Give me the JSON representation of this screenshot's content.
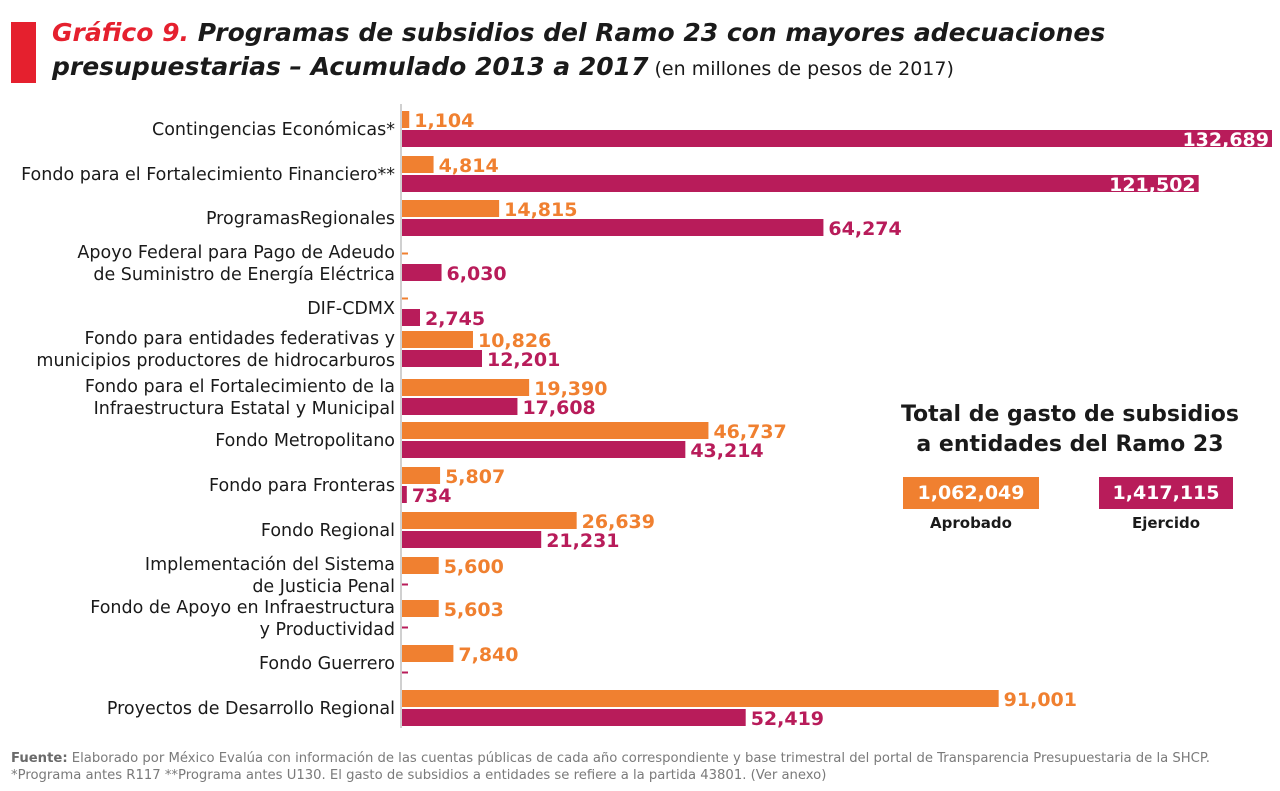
{
  "header": {
    "title_number": "Gráfico 9.",
    "title_line1": " Programas de subsidios del Ramo 23 con mayores adecuaciones",
    "title_line2": "presupuestarias – Acumulado 2013 a 2017",
    "title_units": " (en millones de pesos de 2017)"
  },
  "colors": {
    "aprobado": "#f08030",
    "ejercido": "#b81c5a",
    "accent": "#e5202e"
  },
  "chart_data": {
    "type": "bar",
    "orientation": "horizontal",
    "title": "Gráfico 9. Programas de subsidios del Ramo 23 con mayores adecuaciones presupuestarias – Acumulado 2013 a 2017 (en millones de pesos de 2017)",
    "xlabel": "",
    "ylabel": "",
    "grid": false,
    "legend": "none",
    "xlim": [
      0,
      132689
    ],
    "categories": [
      [
        "Contingencias Económicas*"
      ],
      [
        "Fondo para el Fortalecimiento Financiero**"
      ],
      [
        "ProgramasRegionales"
      ],
      [
        "Apoyo Federal para Pago de Adeudo",
        "de Suministro de Energía Eléctrica"
      ],
      [
        "DIF-CDMX"
      ],
      [
        "Fondo para entidades federativas y",
        "municipios productores de hidrocarburos"
      ],
      [
        "Fondo para el Fortalecimiento de la",
        "Infraestructura Estatal y Municipal"
      ],
      [
        "Fondo Metropolitano"
      ],
      [
        "Fondo para Fronteras"
      ],
      [
        "Fondo Regional"
      ],
      [
        "Implementación del Sistema",
        "de Justicia Penal"
      ],
      [
        "Fondo de Apoyo en Infraestructura",
        "y Productividad"
      ],
      [
        "Fondo Guerrero"
      ],
      [
        "Proyectos de Desarrollo Regional"
      ]
    ],
    "series": [
      {
        "name": "Aprobado",
        "values": [
          1104,
          4814,
          14815,
          0,
          0,
          10826,
          19390,
          46737,
          5807,
          26639,
          5600,
          5603,
          7840,
          91001
        ],
        "labels": [
          "1,104",
          "4,814",
          "14,815",
          "-",
          "-",
          "10,826",
          "19,390",
          "46,737",
          "5,807",
          "26,639",
          "5,600",
          "5,603",
          "7,840",
          "91,001"
        ]
      },
      {
        "name": "Ejercido",
        "values": [
          132689,
          121502,
          64274,
          6030,
          2745,
          12201,
          17608,
          43214,
          734,
          21231,
          0,
          0,
          0,
          52419
        ],
        "labels": [
          "132,689",
          "121,502",
          "64,274",
          "6,030",
          "2,745",
          "12,201",
          "17,608",
          "43,214",
          "734",
          "21,231",
          "-",
          "-",
          "-",
          "52,419"
        ]
      }
    ]
  },
  "summary": {
    "title_line1": "Total de gasto de subsidios",
    "title_line2": "a entidades del Ramo 23",
    "aprobado_value": "1,062,049",
    "aprobado_label": "Aprobado",
    "ejercido_value": "1,417,115",
    "ejercido_label": "Ejercido"
  },
  "footer": {
    "source_label": "Fuente:",
    "source_text": " Elaborado por México Evalúa con información de las cuentas públicas de cada año correspondiente y base trimestral del portal de Transparencia Presupuestaria de la SHCP. *Programa antes R117 **Programa antes U130. El gasto de subsidios a entidades se refiere a la partida 43801. (Ver anexo)"
  }
}
